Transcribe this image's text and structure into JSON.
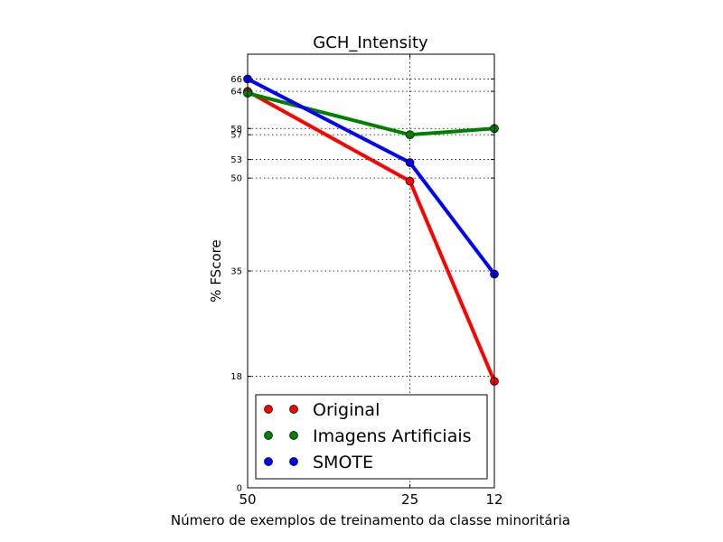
{
  "chart_data": {
    "type": "line",
    "title": "GCH_Intensity",
    "xlabel": "Número de exemplos de treinamento da classe minoritária",
    "ylabel": "% FScore",
    "x": [
      50,
      25,
      12
    ],
    "x_tick_labels": [
      "50",
      "25",
      "12"
    ],
    "xlim": [
      50,
      12
    ],
    "ylim": [
      0,
      70
    ],
    "y_ticks": [
      0,
      18,
      35,
      50,
      53,
      57,
      58,
      64,
      66
    ],
    "y_tick_labels": [
      "0",
      "18",
      "35",
      "50",
      "53",
      "57",
      "58",
      "64",
      "66"
    ],
    "grid": true,
    "legend_position": "lower-center",
    "series": [
      {
        "name": "Original",
        "color": "#ff0000",
        "values": [
          64,
          49.5,
          17.2
        ]
      },
      {
        "name": "Imagens Artificiais",
        "color": "#008000",
        "values": [
          63.7,
          57,
          58
        ]
      },
      {
        "name": "SMOTE",
        "color": "#0000ff",
        "values": [
          66,
          52.5,
          34.5
        ]
      }
    ]
  }
}
